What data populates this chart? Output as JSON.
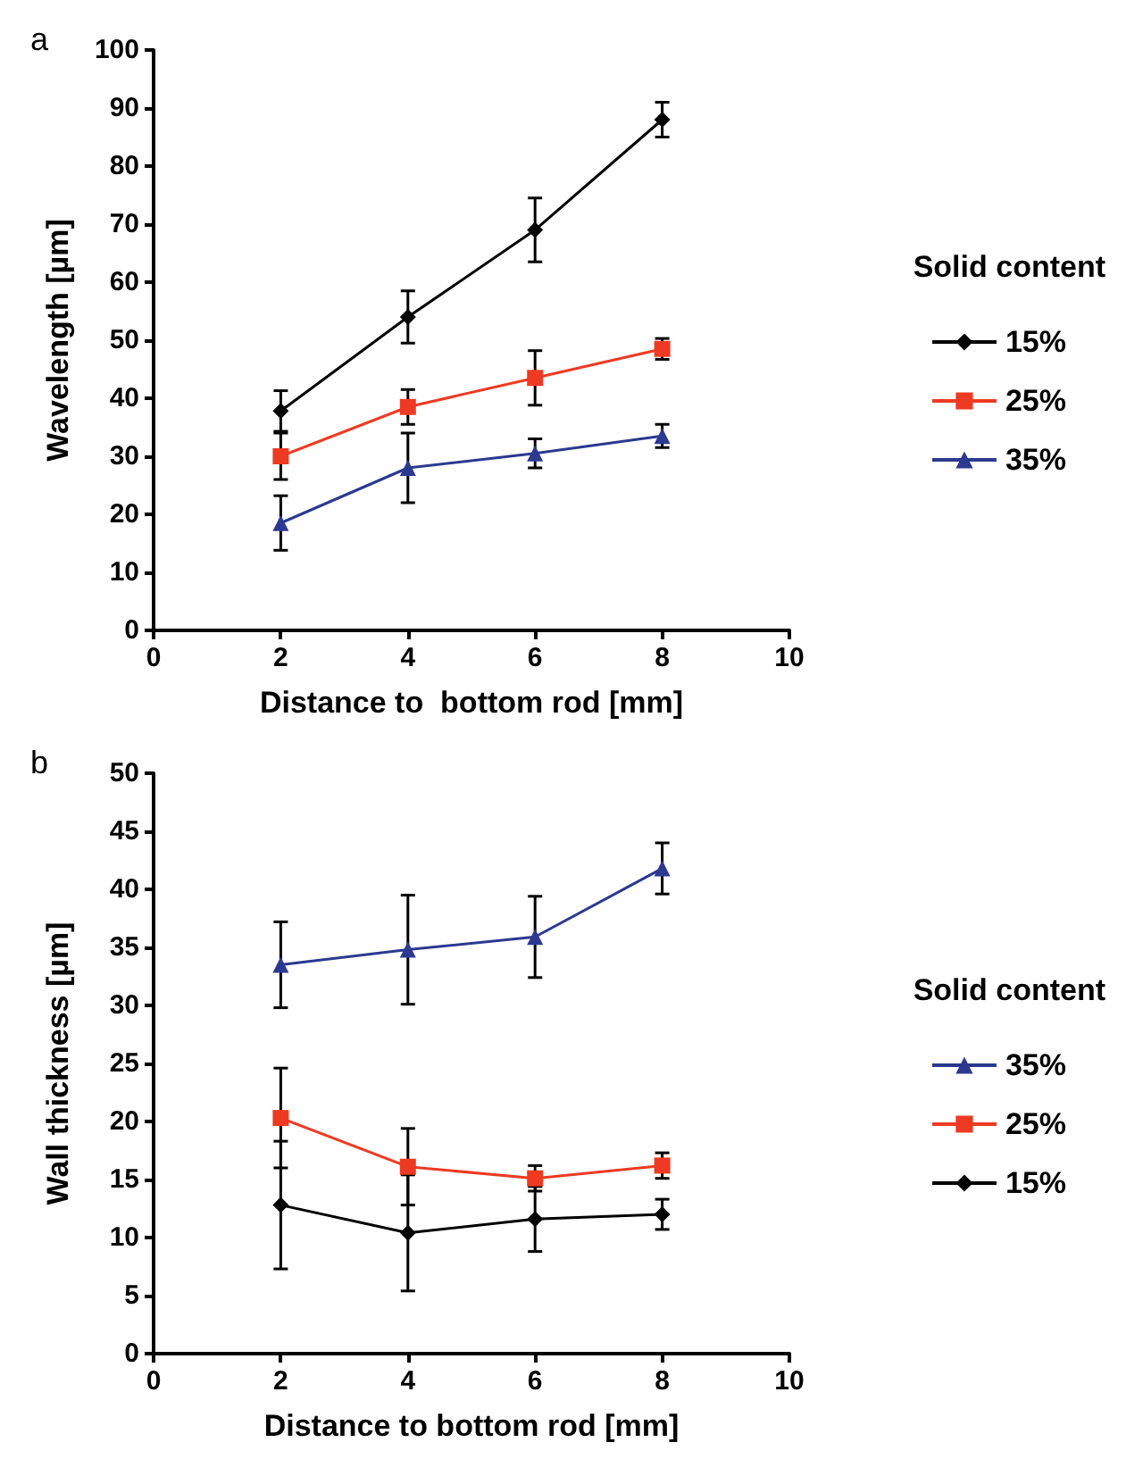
{
  "chart_data": [
    {
      "type": "line",
      "title": "a",
      "xlabel": "Distance to  bottom rod [mm]",
      "ylabel": "Wavelength [µm]",
      "legend_title": "Solid content",
      "legend": "right",
      "grid": false,
      "x": [
        2,
        4,
        6,
        8
      ],
      "xlim": [
        0,
        10
      ],
      "xticks": [
        0,
        2,
        4,
        6,
        8,
        10
      ],
      "ylim": [
        0,
        100
      ],
      "yticks": [
        0,
        10,
        20,
        30,
        40,
        50,
        60,
        70,
        80,
        90,
        100
      ],
      "series": [
        {
          "name": "15%",
          "color": "#000000",
          "marker": "diamond",
          "values": [
            37.8,
            54,
            69,
            88
          ],
          "errors": [
            3.5,
            4.5,
            5.5,
            3
          ]
        },
        {
          "name": "25%",
          "color": "#ee3a23",
          "marker": "square",
          "values": [
            30,
            38.5,
            43.5,
            48.5
          ],
          "errors": [
            4,
            3,
            4.7,
            1.8
          ]
        },
        {
          "name": "35%",
          "color": "#2b3990",
          "marker": "triangle",
          "values": [
            18.5,
            28,
            30.5,
            33.5
          ],
          "errors": [
            4.7,
            6,
            2.5,
            2
          ]
        }
      ]
    },
    {
      "type": "line",
      "title": "b",
      "xlabel": "Distance to bottom rod [mm]",
      "ylabel": "Wall thickness [µm]",
      "legend_title": "Solid content",
      "legend": "right",
      "grid": false,
      "x": [
        2,
        4,
        6,
        8
      ],
      "xlim": [
        0,
        10
      ],
      "xticks": [
        0,
        2,
        4,
        6,
        8,
        10
      ],
      "ylim": [
        0,
        50
      ],
      "yticks": [
        0,
        5,
        10,
        15,
        20,
        25,
        30,
        35,
        40,
        45,
        50
      ],
      "series": [
        {
          "name": "35%",
          "color": "#2b3990",
          "marker": "triangle",
          "values": [
            33.5,
            34.8,
            35.9,
            41.8
          ],
          "errors": [
            3.7,
            4.7,
            3.5,
            2.2
          ]
        },
        {
          "name": "25%",
          "color": "#ee3a23",
          "marker": "square",
          "values": [
            20.3,
            16.1,
            15.1,
            16.2
          ],
          "errors": [
            4.3,
            3.3,
            1.1,
            1.1
          ]
        },
        {
          "name": "15%",
          "color": "#000000",
          "marker": "diamond",
          "values": [
            12.8,
            10.4,
            11.6,
            12
          ],
          "errors": [
            5.5,
            5,
            2.8,
            1.3
          ]
        }
      ]
    }
  ]
}
